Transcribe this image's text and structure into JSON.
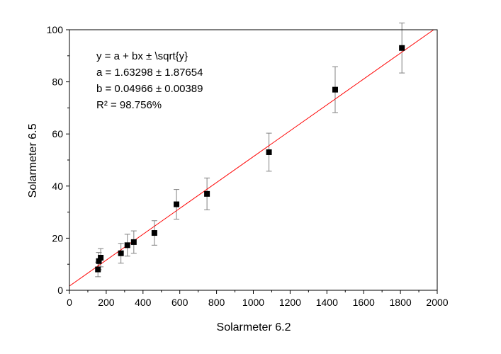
{
  "chart_data": {
    "type": "scatter",
    "title": "",
    "xlabel": "Solarmeter 6.2",
    "ylabel": "Solarmeter 6.5",
    "xlim": [
      0,
      2000
    ],
    "ylim": [
      0,
      100
    ],
    "x_ticks": [
      0,
      200,
      400,
      600,
      800,
      1000,
      1200,
      1400,
      1600,
      1800,
      2000
    ],
    "y_ticks": [
      0,
      20,
      40,
      60,
      80,
      100
    ],
    "x_tick_labels": [
      "0",
      "200",
      "400",
      "600",
      "800",
      "1000",
      "1200",
      "1400",
      "1600",
      "1800",
      "2000"
    ],
    "y_tick_labels": [
      "0",
      "20",
      "40",
      "60",
      "80",
      "100"
    ],
    "grid": false,
    "series": [
      {
        "points": [
          {
            "x": 155,
            "y": 8,
            "err": 2.8
          },
          {
            "x": 160,
            "y": 11.2,
            "err": 3.3
          },
          {
            "x": 170,
            "y": 12.5,
            "err": 3.5
          },
          {
            "x": 280,
            "y": 14.2,
            "err": 3.8
          },
          {
            "x": 315,
            "y": 17.3,
            "err": 4.2
          },
          {
            "x": 350,
            "y": 18.5,
            "err": 4.3
          },
          {
            "x": 462,
            "y": 22,
            "err": 4.7
          },
          {
            "x": 582,
            "y": 33,
            "err": 5.7
          },
          {
            "x": 748,
            "y": 37,
            "err": 6.1
          },
          {
            "x": 1085,
            "y": 53,
            "err": 7.3
          },
          {
            "x": 1445,
            "y": 77,
            "err": 8.8
          },
          {
            "x": 1808,
            "y": 93,
            "err": 9.6
          }
        ],
        "marker": "square",
        "marker_color": "#000000",
        "errorbar_color": "#808080"
      }
    ],
    "fit": {
      "intercept": 1.63298,
      "slope": 0.04966,
      "x_range": [
        0,
        1980
      ],
      "color": "#ff0000"
    },
    "annotation": [
      "y = a + bx ± \\sqrt{y}",
      "a = 1.63298 ± 1.87654",
      "b = 0.04966 ± 0.00389",
      "R² = 98.756%"
    ]
  }
}
